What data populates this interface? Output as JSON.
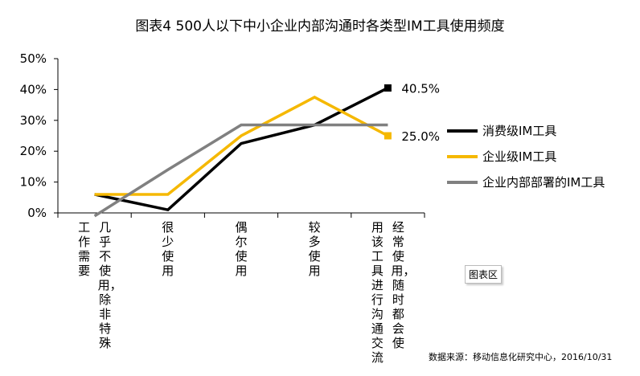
{
  "chart_data": {
    "type": "line",
    "title": "图表4 500人以下中小企业内部沟通时各类型IM工具使用频度",
    "categories": [
      "几乎不使用，除非特殊工作需要",
      "很少使用",
      "偶尔使用",
      "较多使用",
      "经常使用，随时都会使用该工具进行沟通交流"
    ],
    "category_lines": [
      [
        "几乎不使用，除非特殊",
        "工作需要"
      ],
      [
        "很少使用"
      ],
      [
        "偶尔使用"
      ],
      [
        "较多使用"
      ],
      [
        "经常使用，随时都会使",
        "用该工具进行沟通交流"
      ]
    ],
    "yticks": [
      "0%",
      "10%",
      "20%",
      "30%",
      "40%",
      "50%"
    ],
    "ylim": [
      0,
      50
    ],
    "series": [
      {
        "name": "消费级IM工具",
        "color": "#000000",
        "values": [
          6,
          1,
          22.5,
          28.5,
          40.5
        ],
        "end_label": "40.5%",
        "marker": "square"
      },
      {
        "name": "企业级IM工具",
        "color": "#f5b800",
        "values": [
          6,
          6,
          25,
          37.5,
          25
        ],
        "end_label": "25.0%",
        "marker": "square"
      },
      {
        "name": "企业内部部署的IM工具",
        "color": "#808080",
        "values": [
          -1,
          14,
          28.5,
          28.5,
          28.5
        ],
        "end_label": "",
        "marker": "none"
      }
    ],
    "badge": "图表区",
    "source": "数据来源：移动信息化研究中心，2016/10/31"
  }
}
